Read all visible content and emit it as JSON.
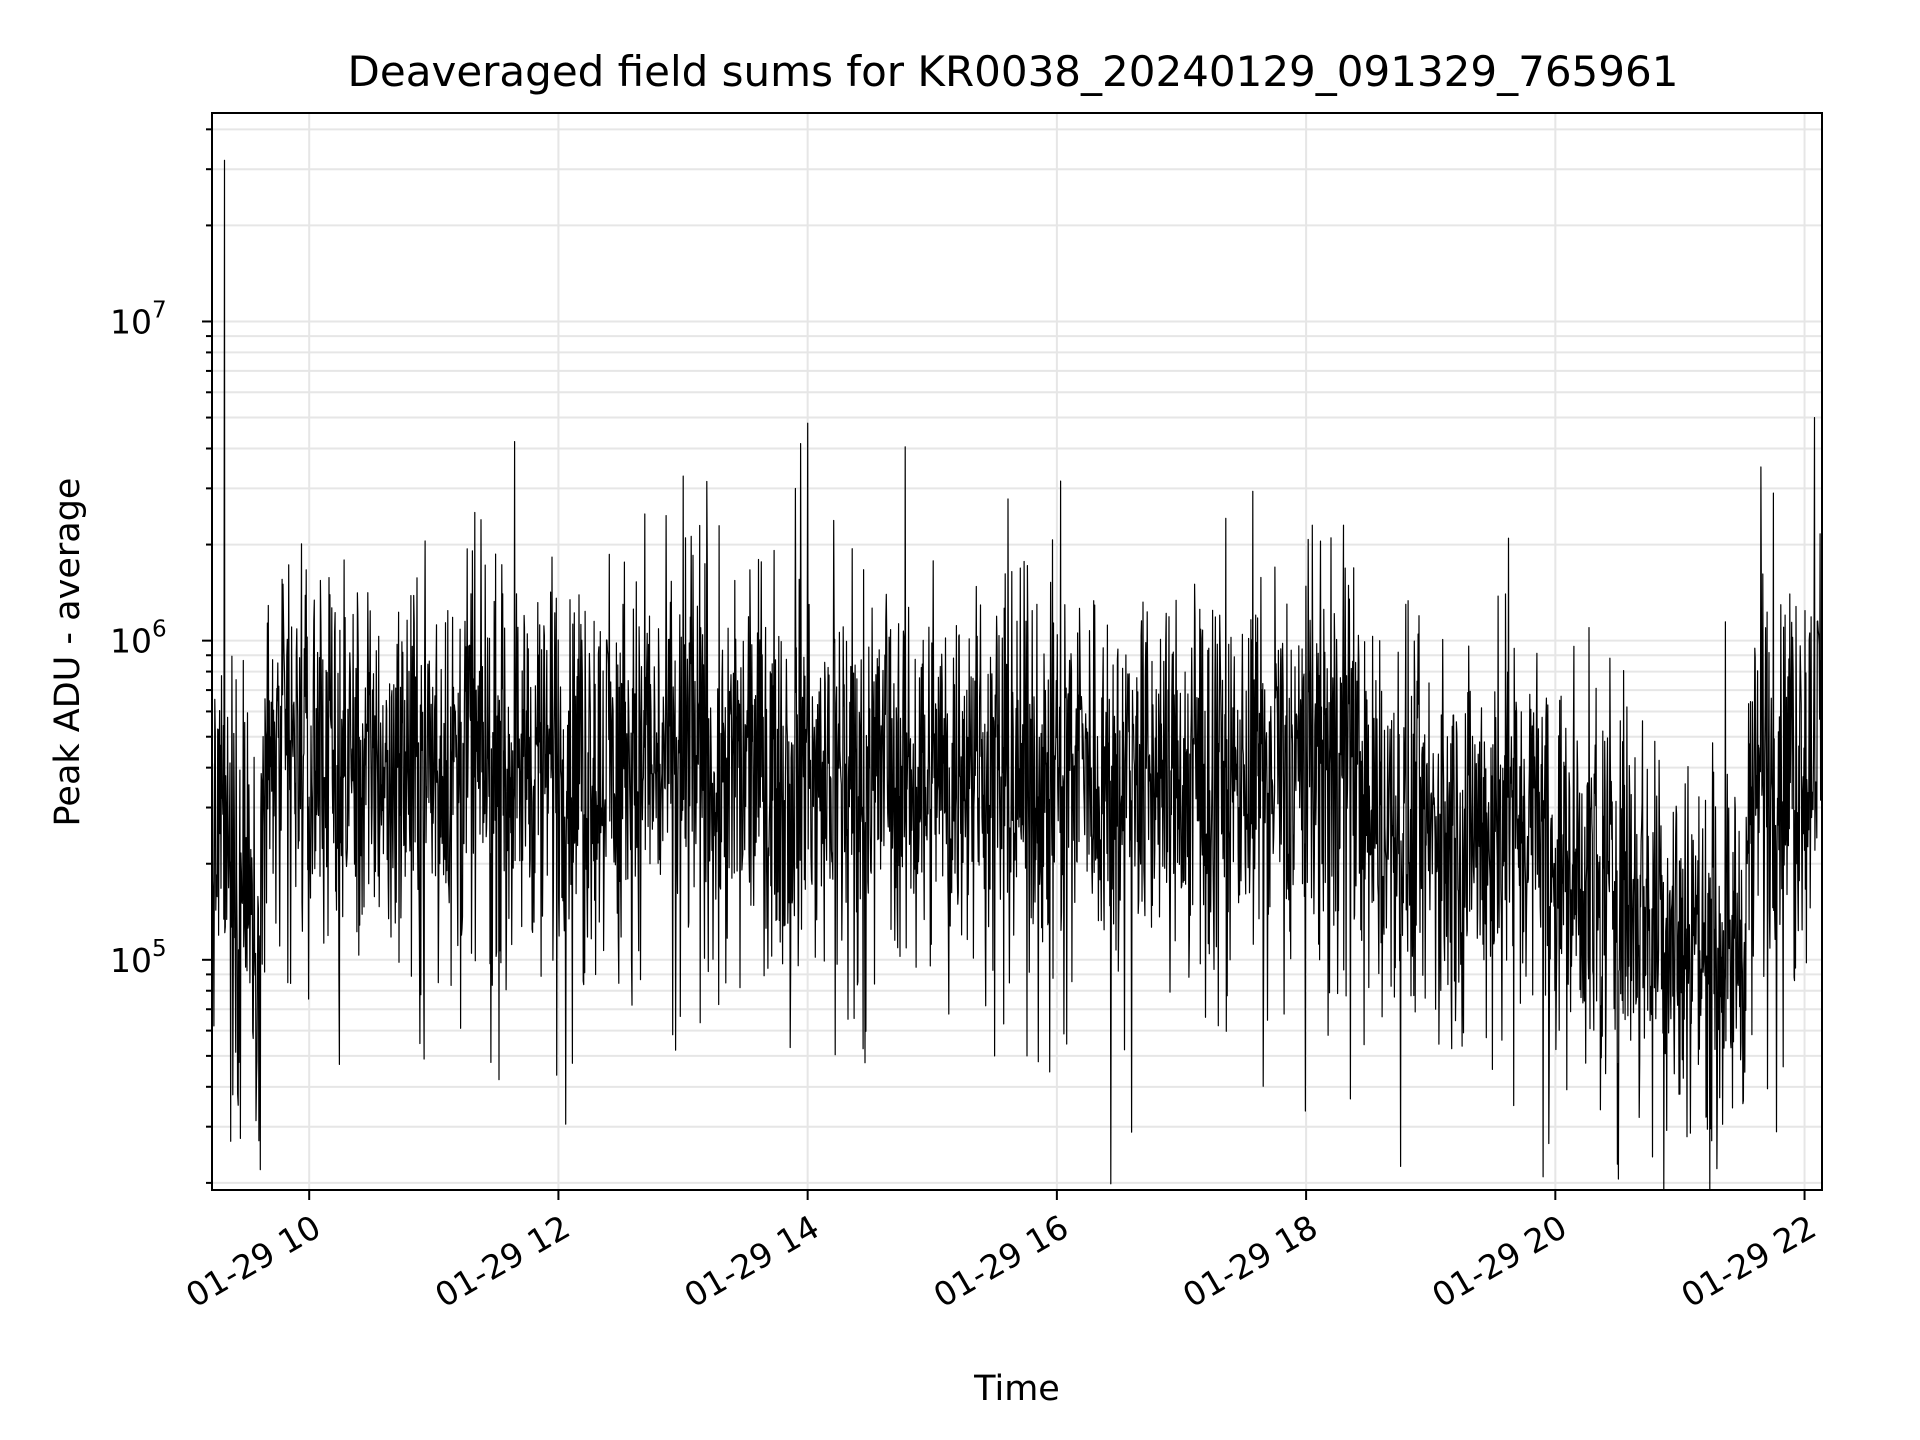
{
  "chart_data": {
    "type": "line",
    "title": "Deaveraged field sums for KR0038_20240129_091329_765961",
    "xlabel": "Time",
    "ylabel": "Peak ADU - average",
    "yscale": "log",
    "grid": true,
    "line_color": "#000000",
    "grid_color": "#e6e6e6",
    "x_range_hours": [
      9.22,
      22.14
    ],
    "y_range": [
      19000,
      45000000
    ],
    "x_ticks": [
      {
        "hour": 10,
        "label": "01-29 10"
      },
      {
        "hour": 12,
        "label": "01-29 12"
      },
      {
        "hour": 14,
        "label": "01-29 14"
      },
      {
        "hour": 16,
        "label": "01-29 16"
      },
      {
        "hour": 18,
        "label": "01-29 18"
      },
      {
        "hour": 20,
        "label": "01-29 20"
      },
      {
        "hour": 22,
        "label": "01-29 22"
      }
    ],
    "y_ticks": [
      {
        "value": 100000,
        "base": "10",
        "exp": "5"
      },
      {
        "value": 1000000,
        "base": "10",
        "exp": "6"
      },
      {
        "value": 10000000,
        "base": "10",
        "exp": "7"
      }
    ],
    "series": [
      {
        "baseline": [
          [
            9.22,
            260000
          ],
          [
            9.4,
            200000
          ],
          [
            9.6,
            140000
          ],
          [
            9.65,
            400000
          ],
          [
            10.0,
            420000
          ],
          [
            11.0,
            420000
          ],
          [
            12.0,
            410000
          ],
          [
            13.0,
            410000
          ],
          [
            14.0,
            400000
          ],
          [
            15.0,
            390000
          ],
          [
            16.0,
            390000
          ],
          [
            17.0,
            380000
          ],
          [
            17.5,
            360000
          ],
          [
            18.0,
            430000
          ],
          [
            18.4,
            420000
          ],
          [
            18.5,
            280000
          ],
          [
            19.0,
            250000
          ],
          [
            19.5,
            240000
          ],
          [
            19.6,
            300000
          ],
          [
            19.9,
            260000
          ],
          [
            20.0,
            190000
          ],
          [
            20.6,
            160000
          ],
          [
            21.0,
            120000
          ],
          [
            21.5,
            110000
          ],
          [
            21.6,
            350000
          ],
          [
            22.14,
            480000
          ]
        ],
        "peaks": [
          [
            9.32,
            32000000
          ],
          [
            9.37,
            27000
          ],
          [
            9.43,
            35000
          ],
          [
            9.58,
            48000
          ],
          [
            11.25,
            1150000
          ],
          [
            11.75,
            1050000
          ],
          [
            13.02,
            2100000
          ],
          [
            13.08,
            1850000
          ],
          [
            14.0,
            4800000
          ],
          [
            15.5,
            50000
          ],
          [
            15.76,
            50000
          ],
          [
            17.75,
            1700000
          ],
          [
            18.05,
            2300000
          ],
          [
            18.2,
            2100000
          ],
          [
            18.3,
            2300000
          ],
          [
            18.8,
            1300000
          ],
          [
            19.6,
            1400000
          ],
          [
            20.56,
            65000
          ],
          [
            21.41,
            53000
          ],
          [
            21.65,
            3500000
          ],
          [
            21.75,
            2900000
          ],
          [
            22.08,
            5000000
          ]
        ]
      }
    ]
  }
}
